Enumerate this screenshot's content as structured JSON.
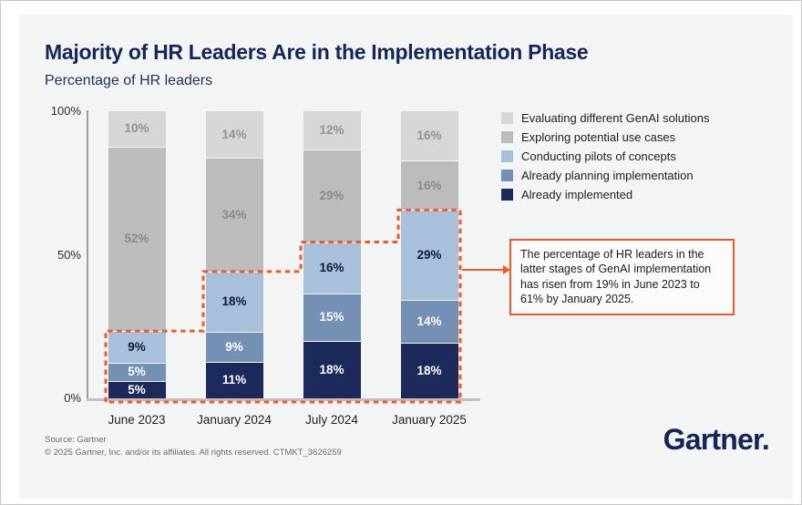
{
  "header": {
    "title": "Majority of HR Leaders Are in the Implementation Phase",
    "subtitle": "Percentage of HR leaders"
  },
  "chart_data": {
    "type": "bar",
    "variant": "stacked-normalized-to-100",
    "categories": [
      "June 2023",
      "January 2024",
      "July 2024",
      "January 2025"
    ],
    "series": [
      {
        "name": "Evaluating different GenAI solutions",
        "color": "#d6d6d6",
        "label_color": "#929292",
        "values": [
          10,
          14,
          12,
          16
        ]
      },
      {
        "name": "Exploring potential use cases",
        "color": "#bcbcbc",
        "label_color": "#8a8a8a",
        "values": [
          52,
          34,
          29,
          16
        ]
      },
      {
        "name": "Conducting pilots of concepts",
        "color": "#a9c0db",
        "label_color": "#101b33",
        "values": [
          9,
          18,
          16,
          29
        ]
      },
      {
        "name": "Already planning implementation",
        "color": "#7590b5",
        "label_color": "#ffffff",
        "values": [
          5,
          9,
          15,
          14
        ]
      },
      {
        "name": "Already implemented",
        "color": "#1b2a5a",
        "label_color": "#ffffff",
        "values": [
          5,
          11,
          18,
          18
        ]
      }
    ],
    "y_ticks": [
      {
        "label": "100%",
        "fraction": 1.0
      },
      {
        "label": "50%",
        "fraction": 0.5
      },
      {
        "label": "0%",
        "fraction": 0.0
      }
    ],
    "legend_position": "right-top",
    "grid": false,
    "highlight": {
      "description": "dashed staircase outlining the bottom three stacked series (latter stages)",
      "bottom_series_count": 3,
      "latter_stage_totals": [
        19,
        38,
        49,
        61
      ],
      "color": "#f05a28"
    }
  },
  "callout": {
    "text": "The percentage of HR leaders in the latter stages of GenAI implementation has risen from 19% in June 2023 to 61% by January 2025."
  },
  "footer": {
    "source": "Source: Gartner",
    "copyright": "© 2025 Gartner, Inc. and/or its affiliates. All rights reserved. CTMKT_3626259",
    "logo": "Gartner."
  }
}
